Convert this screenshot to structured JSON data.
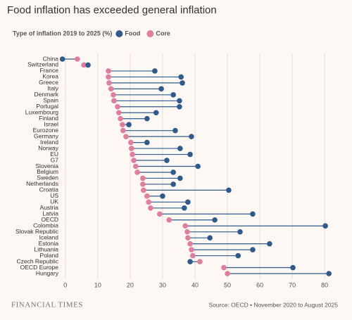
{
  "chart_data": {
    "type": "dumbbell",
    "title": "Food inflation has exceeded general inflation",
    "legend_title": "Type of inflation 2019 to 2025 (%)",
    "brand": "FINANCIAL TIMES",
    "source": "Source: OECD • November 2020 to August 2025",
    "categories": [
      "China",
      "Switzerland",
      "France",
      "Korea",
      "Greece",
      "Italy",
      "Denmark",
      "Spain",
      "Portugal",
      "Luxembourg",
      "Finland",
      "Israel",
      "Eurozone",
      "Germany",
      "Ireland",
      "Norway",
      "EU",
      "G7",
      "Slovenia",
      "Belgium",
      "Sweden",
      "Netherlands",
      "Croatia",
      "US",
      "UK",
      "Austria",
      "Latvia",
      "OECD",
      "Colombia",
      "Slovak Republic",
      "Iceland",
      "Estonia",
      "Lithuania",
      "Poland",
      "Czech Republic",
      "OECD Europe",
      "Hungary"
    ],
    "series": [
      {
        "name": "Food",
        "color": "#2f5b8c",
        "values": [
          -0.9,
          7,
          27.6,
          35.7,
          36.1,
          29.6,
          33.3,
          35.2,
          35.2,
          28,
          25.2,
          19.6,
          33.9,
          38.9,
          25.2,
          35.4,
          38.5,
          31.3,
          40.9,
          33.3,
          35.4,
          33.3,
          50.4,
          30,
          37.8,
          36.7,
          57.8,
          46.1,
          80.2,
          53.9,
          44.6,
          63,
          57.8,
          53.3,
          38.5,
          70.2,
          81.3
        ]
      },
      {
        "name": "Core",
        "color": "#e27d9e",
        "values": [
          3.7,
          5.7,
          13.3,
          13.3,
          13.5,
          14.1,
          14.8,
          15,
          16.1,
          16.5,
          17,
          17.6,
          17.8,
          18.7,
          20.2,
          20.4,
          20.7,
          21.1,
          21.7,
          22.2,
          23.9,
          23.9,
          24.1,
          25.2,
          25.7,
          26.3,
          29.1,
          32,
          37,
          37.6,
          37.8,
          38.5,
          38.9,
          39.3,
          41.5,
          48.9,
          50
        ]
      }
    ],
    "xlim": [
      -3,
      83
    ],
    "xticks": [
      0,
      10,
      20,
      30,
      40,
      50,
      60,
      70,
      80
    ],
    "grid": true
  }
}
